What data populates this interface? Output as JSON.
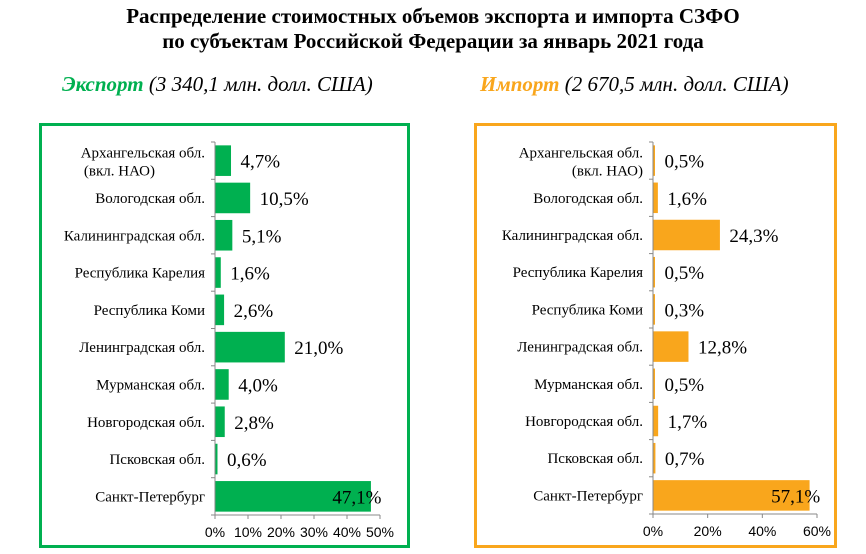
{
  "title": {
    "line1": "Распределение стоимостных объемов  экспорта  и  импорта СЗФО",
    "line2": "по  субъектам  Российской  Федерации за январь 2021 года"
  },
  "colors": {
    "export": "#00b050",
    "import": "#f9a61c"
  },
  "chart_data": [
    {
      "type": "bar",
      "orientation": "horizontal",
      "title_word": "Экспорт",
      "title_rest": "  (3 340,1 млн. долл. США)",
      "categories": [
        "Архангельская обл. (вкл. НАО)",
        "Вологодская обл.",
        "Калининградская обл.",
        "Республика Карелия",
        "Республика Коми",
        "Ленинградская обл.",
        "Мурманская обл.",
        "Новгородская обл.",
        "Псковская обл.",
        "Санкт-Петербург"
      ],
      "values": [
        4.7,
        10.5,
        5.1,
        1.6,
        2.6,
        21.0,
        4.0,
        2.8,
        0.6,
        47.1
      ],
      "labels": [
        "4,7%",
        "10,5%",
        "5,1%",
        "1,6%",
        "2,6%",
        "21,0%",
        "4,0%",
        "2,8%",
        "0,6%",
        "47,1%"
      ],
      "xlim": [
        0,
        50
      ],
      "ticks": [
        "0%",
        "10%",
        "20%",
        "30%",
        "40%",
        "50%"
      ],
      "color": "#00b050"
    },
    {
      "type": "bar",
      "orientation": "horizontal",
      "title_word": "Импорт",
      "title_rest": "  (2 670,5  млн. долл. США)",
      "categories": [
        "Архангельская обл. (вкл. НАО)",
        "Вологодская обл.",
        "Калининградская обл.",
        "Республика Карелия",
        "Республика Коми",
        "Ленинградская обл.",
        "Мурманская обл.",
        "Новгородская обл.",
        "Псковская обл.",
        "Санкт-Петербург"
      ],
      "values": [
        0.5,
        1.6,
        24.3,
        0.5,
        0.3,
        12.8,
        0.5,
        1.7,
        0.7,
        57.1
      ],
      "labels": [
        "0,5%",
        "1,6%",
        "24,3%",
        "0,5%",
        "0,3%",
        "12,8%",
        "0,5%",
        "1,7%",
        "0,7%",
        "57,1%"
      ],
      "xlim": [
        0,
        60
      ],
      "ticks": [
        "0%",
        "20%",
        "40%",
        "60%"
      ],
      "color": "#f9a61c"
    }
  ]
}
